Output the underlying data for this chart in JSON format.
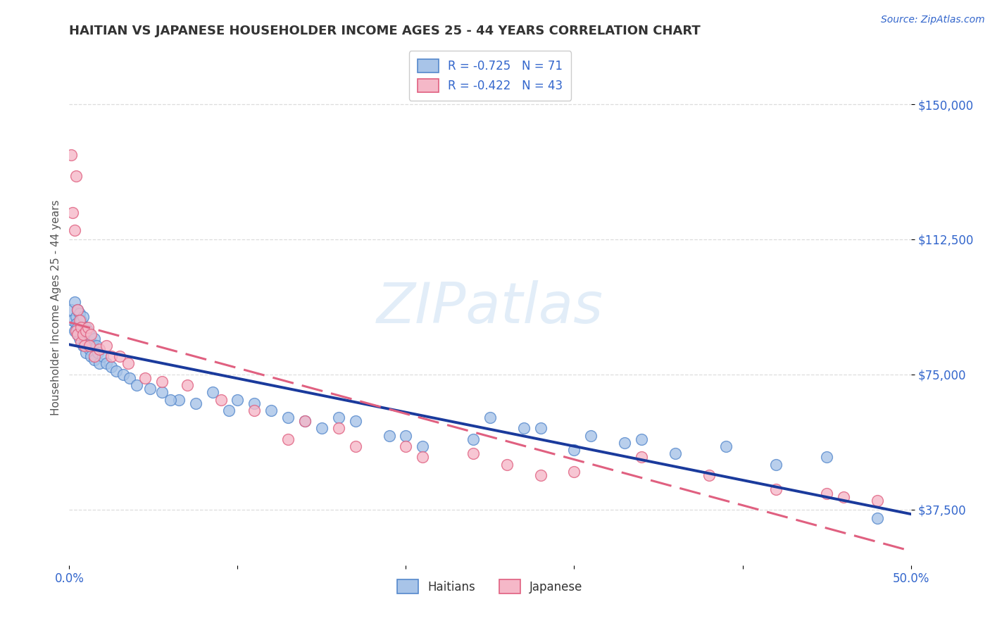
{
  "title": "HAITIAN VS JAPANESE HOUSEHOLDER INCOME AGES 25 - 44 YEARS CORRELATION CHART",
  "source": "Source: ZipAtlas.com",
  "ylabel": "Householder Income Ages 25 - 44 years",
  "yticks": [
    37500,
    75000,
    112500,
    150000
  ],
  "ytick_labels": [
    "$37,500",
    "$75,000",
    "$112,500",
    "$150,000"
  ],
  "xmin": 0.0,
  "xmax": 0.5,
  "ymin": 22000,
  "ymax": 165000,
  "watermark": "ZIPatlas",
  "haitian_color": "#a8c4e8",
  "haitian_edge": "#5588cc",
  "japanese_color": "#f5b8c8",
  "japanese_edge": "#e06080",
  "haitian_line_color": "#1a3a9c",
  "japanese_line_color": "#e06080",
  "grid_color": "#dddddd",
  "background_color": "#ffffff",
  "title_color": "#333333",
  "axis_label_color": "#3366cc",
  "legend_text_color": "#3366cc",
  "haitian_x": [
    0.001,
    0.002,
    0.003,
    0.003,
    0.004,
    0.004,
    0.005,
    0.005,
    0.005,
    0.006,
    0.006,
    0.007,
    0.007,
    0.008,
    0.008,
    0.008,
    0.009,
    0.009,
    0.01,
    0.01,
    0.01,
    0.011,
    0.011,
    0.012,
    0.012,
    0.013,
    0.013,
    0.014,
    0.015,
    0.015,
    0.016,
    0.017,
    0.018,
    0.02,
    0.022,
    0.025,
    0.028,
    0.032,
    0.036,
    0.04,
    0.048,
    0.055,
    0.065,
    0.075,
    0.085,
    0.095,
    0.11,
    0.13,
    0.15,
    0.17,
    0.19,
    0.21,
    0.24,
    0.27,
    0.3,
    0.33,
    0.36,
    0.39,
    0.42,
    0.45,
    0.1,
    0.12,
    0.14,
    0.16,
    0.2,
    0.25,
    0.28,
    0.31,
    0.34,
    0.48,
    0.06
  ],
  "haitian_y": [
    93000,
    90000,
    95000,
    87000,
    91000,
    89000,
    88000,
    93000,
    86000,
    92000,
    85000,
    90000,
    87000,
    88000,
    83000,
    91000,
    86000,
    84000,
    88000,
    85000,
    81000,
    84000,
    87000,
    82000,
    86000,
    84000,
    80000,
    83000,
    85000,
    79000,
    83000,
    81000,
    78000,
    80000,
    78000,
    77000,
    76000,
    75000,
    74000,
    72000,
    71000,
    70000,
    68000,
    67000,
    70000,
    65000,
    67000,
    63000,
    60000,
    62000,
    58000,
    55000,
    57000,
    60000,
    54000,
    56000,
    53000,
    55000,
    50000,
    52000,
    68000,
    65000,
    62000,
    63000,
    58000,
    63000,
    60000,
    58000,
    57000,
    35000,
    68000
  ],
  "japanese_x": [
    0.001,
    0.002,
    0.003,
    0.004,
    0.004,
    0.005,
    0.005,
    0.006,
    0.007,
    0.007,
    0.008,
    0.009,
    0.01,
    0.011,
    0.012,
    0.013,
    0.015,
    0.018,
    0.022,
    0.025,
    0.03,
    0.035,
    0.045,
    0.055,
    0.07,
    0.09,
    0.11,
    0.14,
    0.17,
    0.21,
    0.26,
    0.3,
    0.34,
    0.38,
    0.42,
    0.45,
    0.46,
    0.48,
    0.13,
    0.16,
    0.2,
    0.24,
    0.28
  ],
  "japanese_y": [
    136000,
    120000,
    115000,
    130000,
    87000,
    93000,
    86000,
    90000,
    88000,
    84000,
    86000,
    83000,
    87000,
    88000,
    83000,
    86000,
    80000,
    82000,
    83000,
    80000,
    80000,
    78000,
    74000,
    73000,
    72000,
    68000,
    65000,
    62000,
    55000,
    52000,
    50000,
    48000,
    52000,
    47000,
    43000,
    42000,
    41000,
    40000,
    57000,
    60000,
    55000,
    53000,
    47000
  ],
  "haitian_R": -0.725,
  "haitian_N": 71,
  "japanese_R": -0.422,
  "japanese_N": 43
}
